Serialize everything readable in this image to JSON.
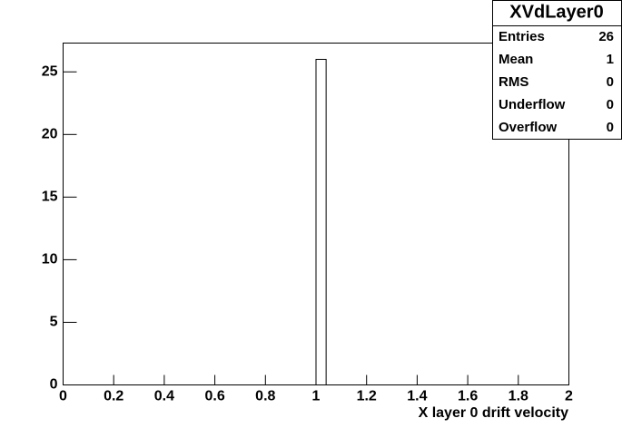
{
  "chart_data": {
    "type": "histogram",
    "x_label": "X layer 0 drift velocity",
    "bins": [
      0,
      0.04,
      0.08,
      0.12,
      0.16,
      0.2,
      0.24,
      0.28,
      0.32,
      0.36,
      0.4,
      0.44,
      0.48,
      0.52,
      0.56,
      0.6,
      0.64,
      0.68,
      0.72,
      0.76,
      0.8,
      0.84,
      0.88,
      0.92,
      0.96,
      1,
      1.04,
      1.08,
      1.12,
      1.16,
      1.2,
      1.24,
      1.28,
      1.32,
      1.36,
      1.4,
      1.44,
      1.48,
      1.52,
      1.56,
      1.6,
      1.64,
      1.68,
      1.72,
      1.76,
      1.8,
      1.84,
      1.88,
      1.92,
      1.96,
      2
    ],
    "counts": [
      0,
      0,
      0,
      0,
      0,
      0,
      0,
      0,
      0,
      0,
      0,
      0,
      0,
      0,
      0,
      0,
      0,
      0,
      0,
      0,
      0,
      0,
      0,
      0,
      0,
      26,
      0,
      0,
      0,
      0,
      0,
      0,
      0,
      0,
      0,
      0,
      0,
      0,
      0,
      0,
      0,
      0,
      0,
      0,
      0,
      0,
      0,
      0,
      0,
      0
    ],
    "color": "#ffffff",
    "xlim": [
      0,
      2
    ],
    "ylim": [
      0,
      27.3
    ],
    "xticks": [
      0,
      0.2,
      0.4,
      0.6,
      0.8,
      1,
      1.2,
      1.4,
      1.6,
      1.8,
      2
    ],
    "yticks": [
      0,
      5,
      10,
      15,
      20,
      25
    ],
    "stats": {
      "title": "XVdLayer0",
      "rows": [
        [
          "Entries",
          26
        ],
        [
          "Mean",
          1
        ],
        [
          "RMS",
          0
        ],
        [
          "Underflow",
          0
        ],
        [
          "Overflow",
          0
        ]
      ]
    }
  }
}
